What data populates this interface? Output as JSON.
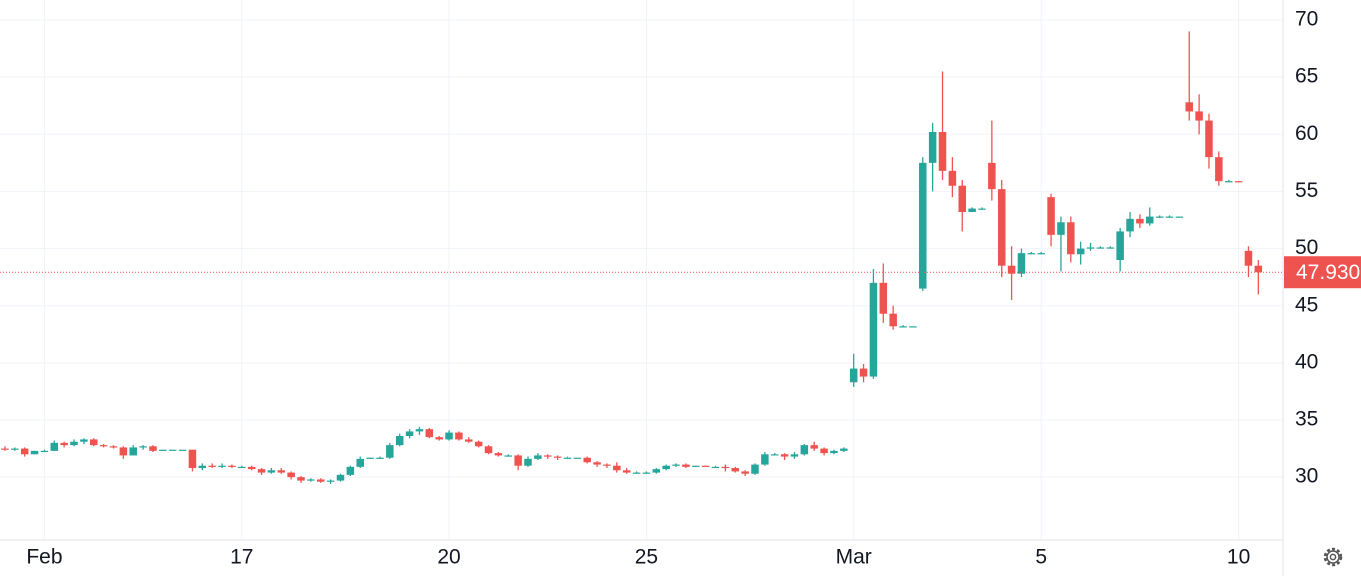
{
  "chart_data": {
    "type": "candlestick",
    "categories": [
      null,
      null,
      null,
      null,
      "Feb",
      null,
      null,
      null,
      null,
      null,
      null,
      null,
      null,
      null,
      null,
      null,
      null,
      null,
      null,
      null,
      null,
      null,
      null,
      null,
      "17",
      null,
      null,
      null,
      null,
      null,
      null,
      null,
      null,
      null,
      null,
      null,
      null,
      null,
      null,
      null,
      null,
      null,
      null,
      null,
      null,
      "20",
      null,
      null,
      null,
      null,
      null,
      null,
      null,
      null,
      null,
      null,
      null,
      null,
      null,
      null,
      null,
      null,
      null,
      null,
      null,
      "25",
      null,
      null,
      null,
      null,
      null,
      null,
      null,
      null,
      null,
      null,
      null,
      null,
      null,
      null,
      null,
      null,
      null,
      null,
      null,
      null,
      "Mar",
      null,
      null,
      null,
      null,
      null,
      null,
      null,
      null,
      null,
      null,
      null,
      null,
      null,
      null,
      null,
      null,
      null,
      null,
      "5",
      null,
      null,
      null,
      null,
      null,
      null,
      null,
      null,
      null,
      null,
      null,
      null,
      null,
      null,
      null,
      null,
      null,
      null,
      null,
      "10",
      null
    ],
    "ohlc": [
      [
        32.5,
        32.7,
        32.3,
        32.4
      ],
      [
        32.4,
        32.6,
        32.3,
        32.5
      ],
      [
        32.5,
        32.6,
        31.8,
        32.0
      ],
      [
        32.0,
        32.3,
        32.0,
        32.3
      ],
      [
        32.3,
        32.4,
        32.2,
        32.3
      ],
      [
        32.3,
        33.2,
        32.3,
        33.0
      ],
      [
        33.0,
        33.1,
        32.6,
        32.8
      ],
      [
        32.8,
        33.3,
        32.7,
        33.1
      ],
      [
        33.1,
        33.4,
        32.9,
        33.3
      ],
      [
        33.3,
        33.4,
        32.7,
        32.8
      ],
      [
        32.8,
        32.9,
        32.6,
        32.7
      ],
      [
        32.7,
        32.8,
        32.5,
        32.6
      ],
      [
        32.6,
        32.7,
        31.6,
        31.9
      ],
      [
        31.9,
        32.8,
        31.9,
        32.6
      ],
      [
        32.6,
        32.8,
        32.4,
        32.7
      ],
      [
        32.7,
        32.8,
        32.2,
        32.3
      ],
      [
        32.3,
        32.4,
        32.3,
        32.4
      ],
      [
        32.4,
        32.4,
        32.4,
        32.4
      ],
      [
        32.4,
        32.4,
        32.4,
        32.4
      ],
      [
        32.4,
        32.4,
        30.5,
        30.8
      ],
      [
        30.8,
        31.2,
        30.6,
        31.0
      ],
      [
        31.0,
        31.2,
        30.8,
        30.9
      ],
      [
        30.9,
        31.2,
        30.8,
        31.0
      ],
      [
        31.0,
        31.1,
        30.8,
        30.9
      ],
      [
        30.9,
        31.0,
        30.8,
        30.9
      ],
      [
        30.9,
        31.0,
        30.6,
        30.7
      ],
      [
        30.7,
        30.8,
        30.2,
        30.4
      ],
      [
        30.4,
        30.8,
        30.3,
        30.6
      ],
      [
        30.6,
        30.8,
        30.3,
        30.4
      ],
      [
        30.4,
        30.5,
        29.8,
        30.0
      ],
      [
        30.0,
        30.1,
        29.5,
        29.7
      ],
      [
        29.7,
        29.9,
        29.6,
        29.8
      ],
      [
        29.8,
        29.9,
        29.5,
        29.6
      ],
      [
        29.6,
        29.8,
        29.4,
        29.7
      ],
      [
        29.7,
        30.3,
        29.6,
        30.2
      ],
      [
        30.2,
        31.0,
        30.1,
        30.9
      ],
      [
        30.9,
        31.8,
        30.8,
        31.6
      ],
      [
        31.6,
        31.7,
        31.6,
        31.7
      ],
      [
        31.7,
        31.8,
        31.6,
        31.7
      ],
      [
        31.7,
        33.0,
        31.6,
        32.8
      ],
      [
        32.8,
        33.8,
        32.7,
        33.6
      ],
      [
        33.6,
        34.2,
        33.4,
        34.0
      ],
      [
        34.0,
        34.4,
        33.7,
        34.2
      ],
      [
        34.2,
        34.3,
        33.4,
        33.5
      ],
      [
        33.5,
        33.6,
        33.2,
        33.3
      ],
      [
        33.3,
        34.1,
        33.2,
        33.9
      ],
      [
        33.9,
        34.0,
        33.2,
        33.3
      ],
      [
        33.3,
        33.5,
        33.0,
        33.1
      ],
      [
        33.1,
        33.2,
        32.6,
        32.7
      ],
      [
        32.7,
        32.8,
        32.0,
        32.1
      ],
      [
        32.1,
        32.2,
        31.8,
        31.9
      ],
      [
        31.9,
        32.0,
        31.8,
        31.9
      ],
      [
        31.9,
        32.0,
        30.6,
        31.0
      ],
      [
        31.0,
        31.8,
        30.9,
        31.6
      ],
      [
        31.6,
        32.1,
        31.5,
        31.9
      ],
      [
        31.9,
        32.0,
        31.6,
        31.8
      ],
      [
        31.8,
        31.9,
        31.5,
        31.7
      ],
      [
        31.7,
        31.8,
        31.7,
        31.7
      ],
      [
        31.7,
        31.7,
        31.7,
        31.7
      ],
      [
        31.7,
        31.8,
        31.2,
        31.3
      ],
      [
        31.3,
        31.4,
        30.9,
        31.1
      ],
      [
        31.1,
        31.2,
        30.8,
        31.0
      ],
      [
        31.0,
        31.3,
        30.4,
        30.6
      ],
      [
        30.6,
        30.8,
        30.3,
        30.4
      ],
      [
        30.4,
        30.5,
        30.3,
        30.4
      ],
      [
        30.4,
        30.5,
        30.3,
        30.4
      ],
      [
        30.4,
        30.8,
        30.3,
        30.7
      ],
      [
        30.7,
        31.1,
        30.6,
        31.0
      ],
      [
        31.0,
        31.2,
        30.9,
        31.1
      ],
      [
        31.1,
        31.2,
        30.8,
        30.9
      ],
      [
        30.9,
        31.0,
        30.9,
        31.0
      ],
      [
        31.0,
        31.0,
        30.9,
        30.9
      ],
      [
        30.9,
        31.0,
        30.9,
        30.9
      ],
      [
        30.9,
        31.1,
        30.5,
        30.8
      ],
      [
        30.8,
        30.9,
        30.4,
        30.5
      ],
      [
        30.5,
        30.6,
        30.1,
        30.3
      ],
      [
        30.3,
        31.2,
        30.2,
        31.1
      ],
      [
        31.1,
        32.2,
        31.0,
        32.0
      ],
      [
        32.0,
        32.1,
        31.9,
        32.0
      ],
      [
        32.0,
        32.1,
        31.5,
        31.8
      ],
      [
        31.8,
        32.2,
        31.6,
        32.0
      ],
      [
        32.0,
        32.9,
        31.9,
        32.8
      ],
      [
        32.8,
        33.1,
        32.3,
        32.5
      ],
      [
        32.5,
        32.6,
        31.9,
        32.1
      ],
      [
        32.1,
        32.4,
        32.0,
        32.3
      ],
      [
        32.3,
        32.6,
        32.2,
        32.5
      ],
      [
        38.3,
        40.8,
        37.9,
        39.5
      ],
      [
        39.5,
        39.9,
        38.3,
        38.8
      ],
      [
        38.8,
        48.2,
        38.6,
        47.0
      ],
      [
        47.0,
        48.7,
        43.5,
        44.3
      ],
      [
        44.3,
        45.0,
        42.9,
        43.2
      ],
      [
        43.2,
        43.3,
        43.1,
        43.2
      ],
      [
        43.2,
        43.2,
        43.2,
        43.2
      ],
      [
        46.5,
        58.0,
        46.3,
        57.5
      ],
      [
        57.5,
        61.0,
        55.0,
        60.2
      ],
      [
        60.2,
        65.5,
        56.0,
        56.8
      ],
      [
        56.8,
        58.0,
        54.5,
        55.5
      ],
      [
        55.5,
        56.0,
        51.5,
        53.2
      ],
      [
        53.2,
        53.6,
        53.2,
        53.5
      ],
      [
        53.5,
        53.6,
        53.4,
        53.5
      ],
      [
        57.5,
        61.2,
        54.2,
        55.2
      ],
      [
        55.2,
        56.0,
        47.5,
        48.5
      ],
      [
        48.5,
        50.2,
        45.5,
        47.8
      ],
      [
        47.8,
        50.0,
        47.5,
        49.6
      ],
      [
        49.6,
        49.7,
        49.5,
        49.6
      ],
      [
        49.6,
        49.7,
        49.5,
        49.6
      ],
      [
        54.5,
        54.8,
        50.2,
        51.2
      ],
      [
        51.2,
        52.8,
        48.0,
        52.3
      ],
      [
        52.3,
        52.8,
        48.8,
        49.5
      ],
      [
        49.5,
        50.6,
        48.6,
        50.0
      ],
      [
        50.0,
        50.5,
        49.8,
        50.1
      ],
      [
        50.1,
        50.2,
        50.0,
        50.1
      ],
      [
        50.1,
        50.2,
        50.0,
        50.1
      ],
      [
        49.0,
        51.8,
        48.0,
        51.5
      ],
      [
        51.5,
        53.2,
        51.0,
        52.6
      ],
      [
        52.6,
        53.0,
        51.8,
        52.2
      ],
      [
        52.2,
        53.6,
        52.0,
        52.8
      ],
      [
        52.8,
        52.9,
        52.7,
        52.8
      ],
      [
        52.8,
        52.9,
        52.7,
        52.8
      ],
      [
        52.8,
        52.8,
        52.8,
        52.8
      ],
      [
        62.8,
        69.0,
        61.2,
        62.0
      ],
      [
        62.0,
        63.5,
        60.0,
        61.2
      ],
      [
        61.2,
        61.8,
        57.0,
        58.0
      ],
      [
        58.0,
        58.5,
        55.5,
        55.9
      ],
      [
        55.9,
        56.0,
        55.8,
        55.9
      ],
      [
        55.9,
        55.9,
        55.8,
        55.8
      ],
      [
        49.8,
        50.2,
        47.5,
        48.5
      ],
      [
        48.5,
        49.0,
        46.0,
        47.93
      ]
    ],
    "up_color": "#26a69a",
    "down_color": "#ef5350",
    "ylim": [
      24.5,
      71.75
    ],
    "yticks": [
      30,
      35,
      40,
      45,
      50,
      55,
      60,
      65,
      70
    ],
    "grid": true,
    "last_price": {
      "value": 47.93,
      "label": "47.930"
    }
  }
}
